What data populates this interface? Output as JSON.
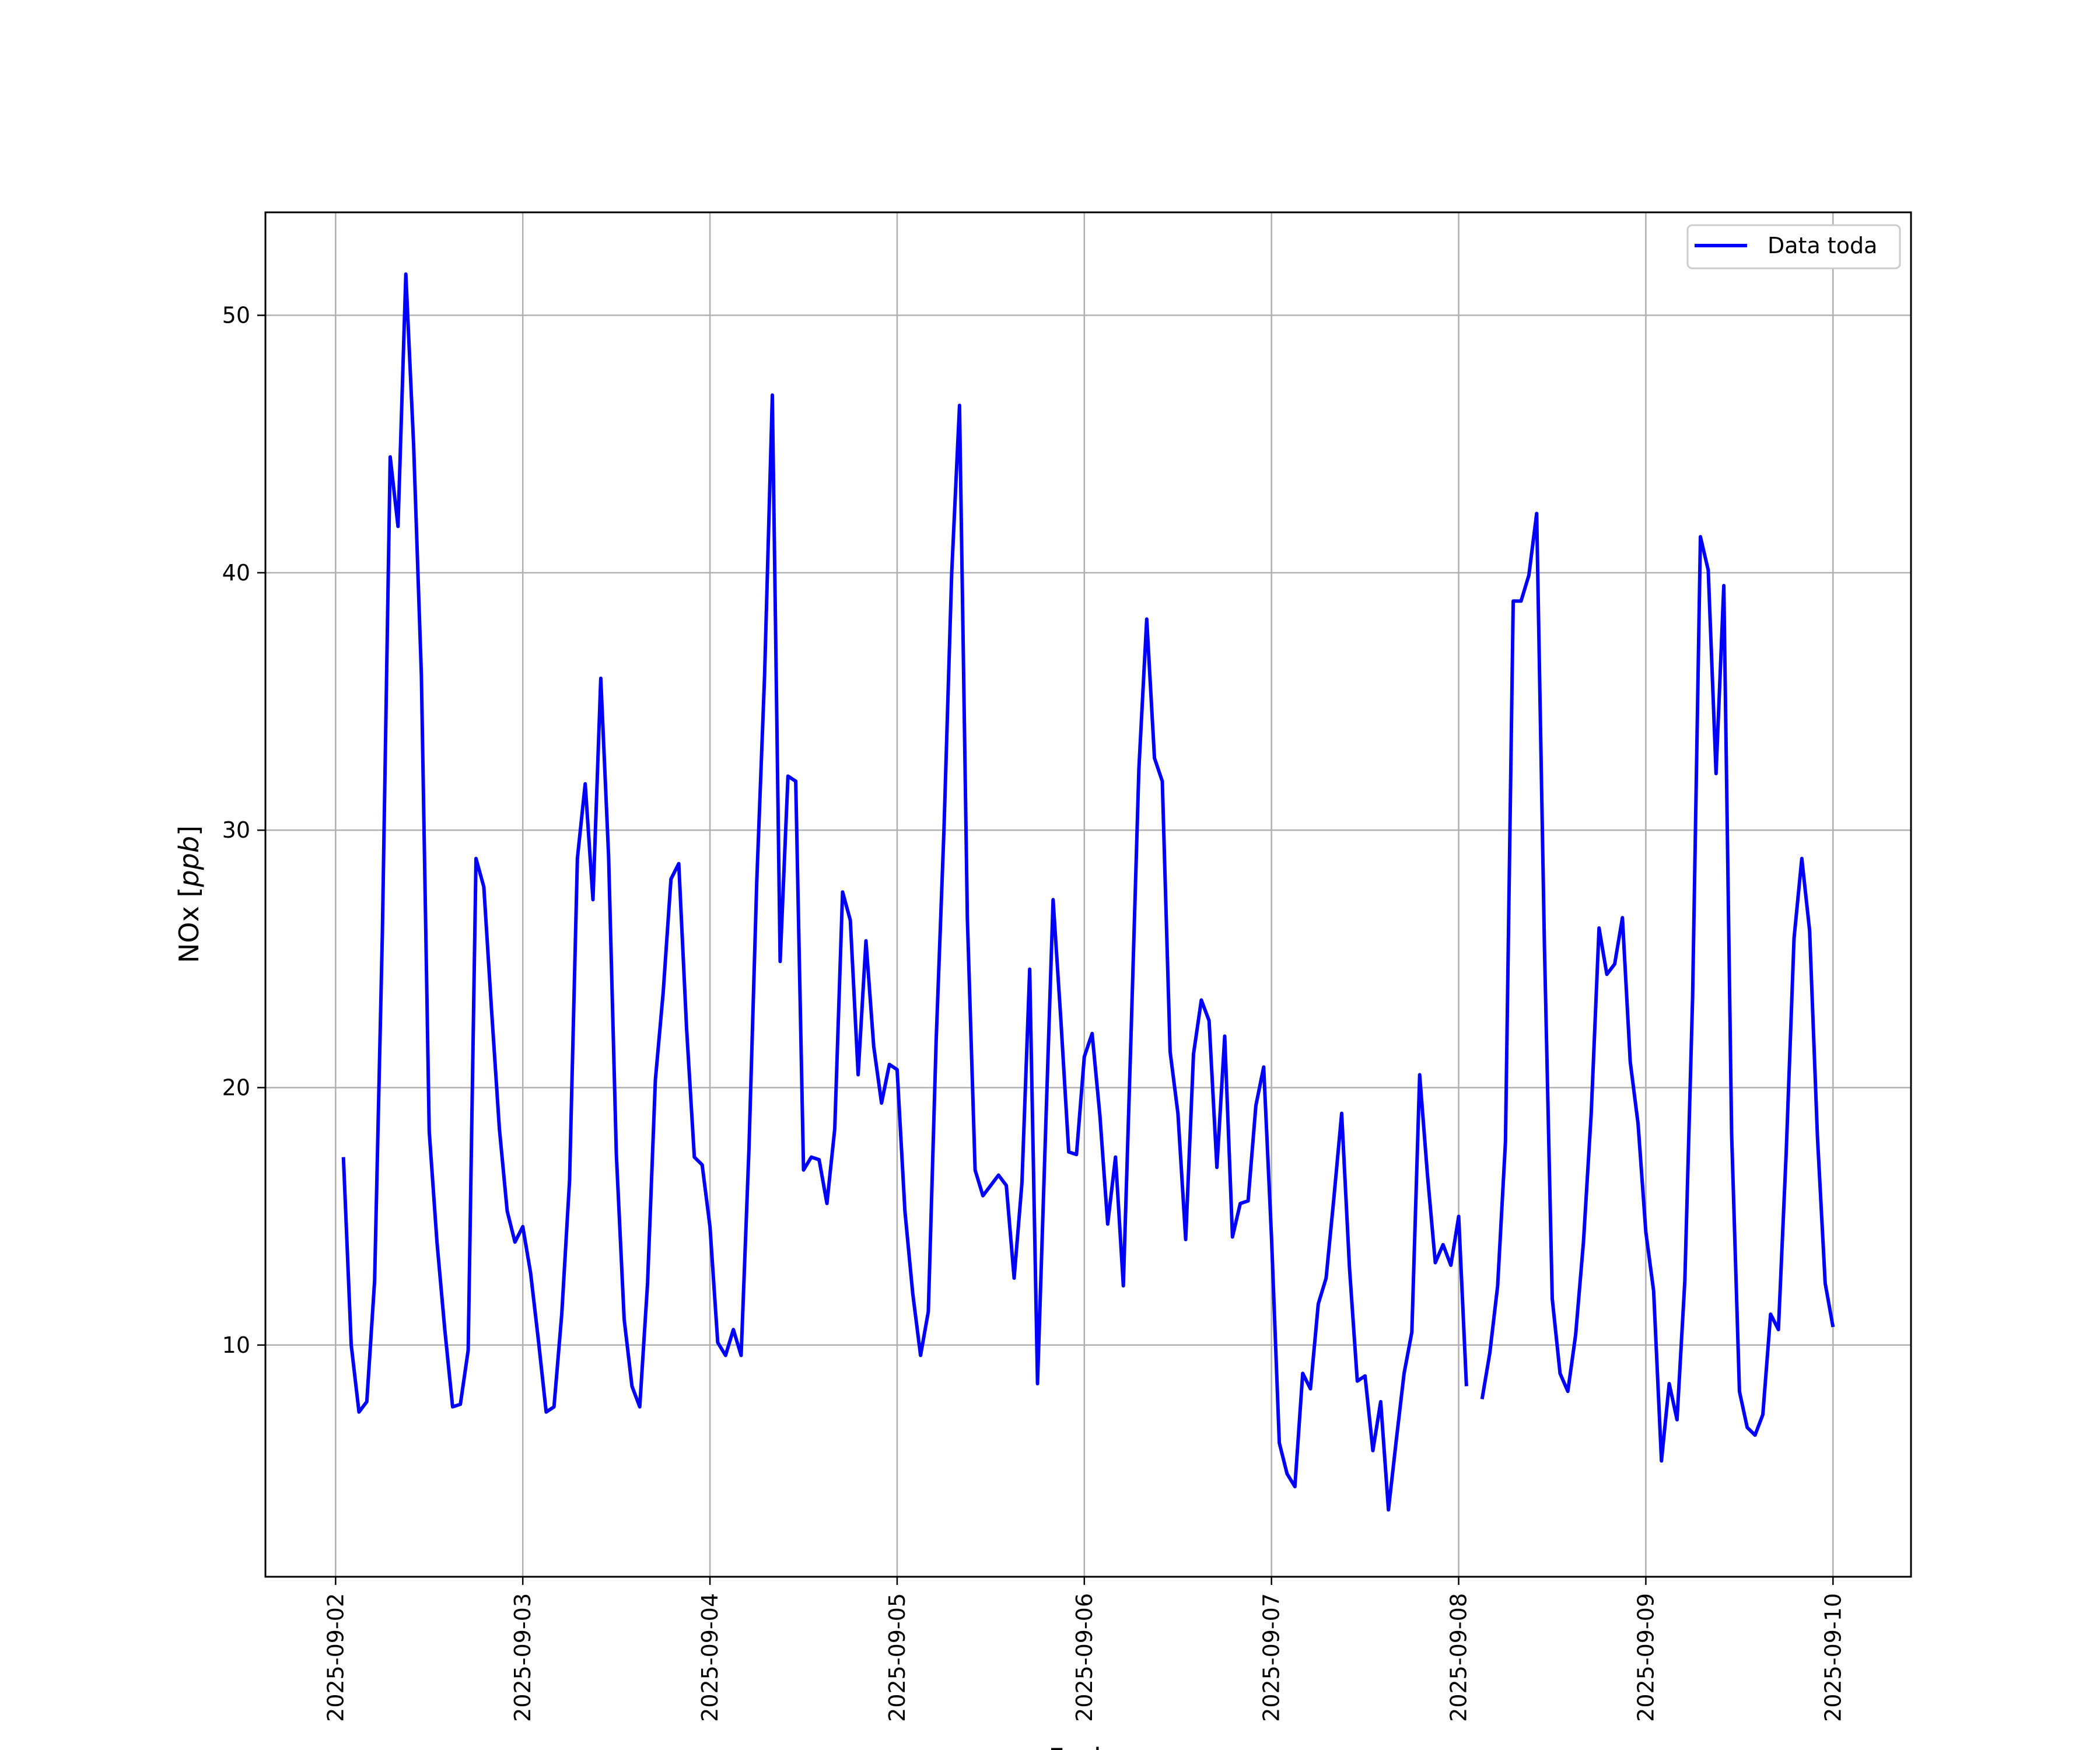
{
  "chart_data": {
    "type": "line",
    "title": "",
    "xlabel": "Fecha",
    "ylabel": "NOx",
    "ylabel_unit": "ppb",
    "x_tick_labels": [
      "2025-09-02",
      "2025-09-03",
      "2025-09-04",
      "2025-09-05",
      "2025-09-06",
      "2025-09-07",
      "2025-09-08",
      "2025-09-09",
      "2025-09-10"
    ],
    "y_ticks": [
      10,
      20,
      30,
      40,
      50
    ],
    "xlim": [
      "2025-09-01T15:00",
      "2025-09-10T10:00"
    ],
    "ylim": [
      1.0,
      54.0
    ],
    "grid": true,
    "legend": {
      "position": "top-right"
    },
    "line_color": "#0000ff",
    "series": [
      {
        "name": "Data toda",
        "points": [
          [
            "2025-09-02T01:00",
            17.3
          ],
          [
            "2025-09-02T02:00",
            10.0
          ],
          [
            "2025-09-02T03:00",
            7.4
          ],
          [
            "2025-09-02T04:00",
            7.8
          ],
          [
            "2025-09-02T05:00",
            12.5
          ],
          [
            "2025-09-02T06:00",
            26.0
          ],
          [
            "2025-09-02T07:00",
            44.5
          ],
          [
            "2025-09-02T08:00",
            41.8
          ],
          [
            "2025-09-02T09:00",
            51.6
          ],
          [
            "2025-09-02T10:00",
            45.0
          ],
          [
            "2025-09-02T11:00",
            36.0
          ],
          [
            "2025-09-02T12:00",
            18.3
          ],
          [
            "2025-09-02T13:00",
            14.0
          ],
          [
            "2025-09-02T14:00",
            10.6
          ],
          [
            "2025-09-02T15:00",
            7.6
          ],
          [
            "2025-09-02T16:00",
            7.7
          ],
          [
            "2025-09-02T17:00",
            9.8
          ],
          [
            "2025-09-02T18:00",
            28.9
          ],
          [
            "2025-09-02T19:00",
            27.8
          ],
          [
            "2025-09-02T20:00",
            23.0
          ],
          [
            "2025-09-02T21:00",
            18.4
          ],
          [
            "2025-09-02T22:00",
            15.2
          ],
          [
            "2025-09-02T23:00",
            14.0
          ],
          [
            "2025-09-03T00:00",
            14.6
          ],
          [
            "2025-09-03T01:00",
            12.8
          ],
          [
            "2025-09-03T02:00",
            10.2
          ],
          [
            "2025-09-03T03:00",
            7.4
          ],
          [
            "2025-09-03T04:00",
            7.6
          ],
          [
            "2025-09-03T05:00",
            11.2
          ],
          [
            "2025-09-03T06:00",
            16.4
          ],
          [
            "2025-09-03T07:00",
            28.9
          ],
          [
            "2025-09-03T08:00",
            31.8
          ],
          [
            "2025-09-03T09:00",
            27.3
          ],
          [
            "2025-09-03T10:00",
            35.9
          ],
          [
            "2025-09-03T11:00",
            29.0
          ],
          [
            "2025-09-03T12:00",
            17.4
          ],
          [
            "2025-09-03T13:00",
            11.0
          ],
          [
            "2025-09-03T14:00",
            8.4
          ],
          [
            "2025-09-03T15:00",
            7.6
          ],
          [
            "2025-09-03T16:00",
            12.4
          ],
          [
            "2025-09-03T17:00",
            20.3
          ],
          [
            "2025-09-03T18:00",
            23.7
          ],
          [
            "2025-09-03T19:00",
            28.1
          ],
          [
            "2025-09-03T20:00",
            28.7
          ],
          [
            "2025-09-03T21:00",
            22.3
          ],
          [
            "2025-09-03T22:00",
            17.3
          ],
          [
            "2025-09-03T23:00",
            17.0
          ],
          [
            "2025-09-04T00:00",
            14.6
          ],
          [
            "2025-09-04T01:00",
            10.1
          ],
          [
            "2025-09-04T02:00",
            9.6
          ],
          [
            "2025-09-04T03:00",
            10.6
          ],
          [
            "2025-09-04T04:00",
            9.6
          ],
          [
            "2025-09-04T05:00",
            17.6
          ],
          [
            "2025-09-04T06:00",
            28.0
          ],
          [
            "2025-09-04T07:00",
            36.0
          ],
          [
            "2025-09-04T08:00",
            46.9
          ],
          [
            "2025-09-04T09:00",
            24.9
          ],
          [
            "2025-09-04T10:00",
            32.1
          ],
          [
            "2025-09-04T11:00",
            31.9
          ],
          [
            "2025-09-04T12:00",
            16.8
          ],
          [
            "2025-09-04T13:00",
            17.3
          ],
          [
            "2025-09-04T14:00",
            17.2
          ],
          [
            "2025-09-04T15:00",
            15.5
          ],
          [
            "2025-09-04T16:00",
            18.4
          ],
          [
            "2025-09-04T17:00",
            27.6
          ],
          [
            "2025-09-04T18:00",
            26.5
          ],
          [
            "2025-09-04T19:00",
            20.5
          ],
          [
            "2025-09-04T20:00",
            25.7
          ],
          [
            "2025-09-04T21:00",
            21.6
          ],
          [
            "2025-09-04T22:00",
            19.4
          ],
          [
            "2025-09-04T23:00",
            20.9
          ],
          [
            "2025-09-05T00:00",
            20.7
          ],
          [
            "2025-09-05T01:00",
            15.2
          ],
          [
            "2025-09-05T02:00",
            12.0
          ],
          [
            "2025-09-05T03:00",
            9.6
          ],
          [
            "2025-09-05T04:00",
            11.3
          ],
          [
            "2025-09-05T05:00",
            21.8
          ],
          [
            "2025-09-05T06:00",
            30.0
          ],
          [
            "2025-09-05T07:00",
            40.0
          ],
          [
            "2025-09-05T08:00",
            46.5
          ],
          [
            "2025-09-05T09:00",
            26.6
          ],
          [
            "2025-09-05T10:00",
            16.8
          ],
          [
            "2025-09-05T11:00",
            15.8
          ],
          [
            "2025-09-05T12:00",
            16.2
          ],
          [
            "2025-09-05T13:00",
            16.6
          ],
          [
            "2025-09-05T14:00",
            16.2
          ],
          [
            "2025-09-05T15:00",
            12.6
          ],
          [
            "2025-09-05T16:00",
            16.3
          ],
          [
            "2025-09-05T17:00",
            24.6
          ],
          [
            "2025-09-05T18:00",
            8.5
          ],
          [
            "2025-09-05T19:00",
            18.0
          ],
          [
            "2025-09-05T20:00",
            27.3
          ],
          [
            "2025-09-05T21:00",
            22.6
          ],
          [
            "2025-09-05T22:00",
            17.5
          ],
          [
            "2025-09-05T23:00",
            17.4
          ],
          [
            "2025-09-06T00:00",
            21.2
          ],
          [
            "2025-09-06T01:00",
            22.1
          ],
          [
            "2025-09-06T02:00",
            18.9
          ],
          [
            "2025-09-06T03:00",
            14.7
          ],
          [
            "2025-09-06T04:00",
            17.3
          ],
          [
            "2025-09-06T05:00",
            12.3
          ],
          [
            "2025-09-06T06:00",
            22.1
          ],
          [
            "2025-09-06T07:00",
            32.4
          ],
          [
            "2025-09-06T08:00",
            38.2
          ],
          [
            "2025-09-06T09:00",
            32.8
          ],
          [
            "2025-09-06T10:00",
            31.9
          ],
          [
            "2025-09-06T11:00",
            21.4
          ],
          [
            "2025-09-06T12:00",
            19.0
          ],
          [
            "2025-09-06T13:00",
            14.1
          ],
          [
            "2025-09-06T14:00",
            21.3
          ],
          [
            "2025-09-06T15:00",
            23.4
          ],
          [
            "2025-09-06T16:00",
            22.6
          ],
          [
            "2025-09-06T17:00",
            16.9
          ],
          [
            "2025-09-06T18:00",
            22.0
          ],
          [
            "2025-09-06T19:00",
            14.2
          ],
          [
            "2025-09-06T20:00",
            15.5
          ],
          [
            "2025-09-06T21:00",
            15.6
          ],
          [
            "2025-09-06T22:00",
            19.3
          ],
          [
            "2025-09-06T23:00",
            20.8
          ],
          [
            "2025-09-07T00:00",
            14.2
          ],
          [
            "2025-09-07T01:00",
            6.2
          ],
          [
            "2025-09-07T02:00",
            5.0
          ],
          [
            "2025-09-07T03:00",
            4.5
          ],
          [
            "2025-09-07T04:00",
            8.9
          ],
          [
            "2025-09-07T05:00",
            8.3
          ],
          [
            "2025-09-07T06:00",
            11.6
          ],
          [
            "2025-09-07T07:00",
            12.6
          ],
          [
            "2025-09-07T08:00",
            15.7
          ],
          [
            "2025-09-07T09:00",
            19.0
          ],
          [
            "2025-09-07T10:00",
            13.0
          ],
          [
            "2025-09-07T11:00",
            8.6
          ],
          [
            "2025-09-07T12:00",
            8.8
          ],
          [
            "2025-09-07T13:00",
            5.9
          ],
          [
            "2025-09-07T14:00",
            7.8
          ],
          [
            "2025-09-07T15:00",
            3.6
          ],
          [
            "2025-09-07T16:00",
            6.3
          ],
          [
            "2025-09-07T17:00",
            8.9
          ],
          [
            "2025-09-07T18:00",
            10.5
          ],
          [
            "2025-09-07T19:00",
            20.5
          ],
          [
            "2025-09-07T20:00",
            16.6
          ],
          [
            "2025-09-07T21:00",
            13.2
          ],
          [
            "2025-09-07T22:00",
            13.9
          ],
          [
            "2025-09-07T23:00",
            13.1
          ],
          [
            "2025-09-08T00:00",
            15.0
          ],
          [
            "2025-09-08T01:00",
            8.4
          ],
          [
            "2025-09-08T02:00",
            null
          ],
          [
            "2025-09-08T03:00",
            7.9
          ],
          [
            "2025-09-08T04:00",
            9.7
          ],
          [
            "2025-09-08T05:00",
            12.3
          ],
          [
            "2025-09-08T06:00",
            17.9
          ],
          [
            "2025-09-08T07:00",
            38.9
          ],
          [
            "2025-09-08T08:00",
            38.9
          ],
          [
            "2025-09-08T09:00",
            39.9
          ],
          [
            "2025-09-08T10:00",
            42.3
          ],
          [
            "2025-09-08T11:00",
            25.5
          ],
          [
            "2025-09-08T12:00",
            11.8
          ],
          [
            "2025-09-08T13:00",
            8.9
          ],
          [
            "2025-09-08T14:00",
            8.2
          ],
          [
            "2025-09-08T15:00",
            10.4
          ],
          [
            "2025-09-08T16:00",
            14.0
          ],
          [
            "2025-09-08T17:00",
            19.0
          ],
          [
            "2025-09-08T18:00",
            26.2
          ],
          [
            "2025-09-08T19:00",
            24.4
          ],
          [
            "2025-09-08T20:00",
            24.8
          ],
          [
            "2025-09-08T21:00",
            26.6
          ],
          [
            "2025-09-08T22:00",
            21.0
          ],
          [
            "2025-09-08T23:00",
            18.6
          ],
          [
            "2025-09-09T00:00",
            14.4
          ],
          [
            "2025-09-09T01:00",
            12.1
          ],
          [
            "2025-09-09T02:00",
            5.5
          ],
          [
            "2025-09-09T03:00",
            8.5
          ],
          [
            "2025-09-09T04:00",
            7.1
          ],
          [
            "2025-09-09T05:00",
            12.5
          ],
          [
            "2025-09-09T06:00",
            23.5
          ],
          [
            "2025-09-09T07:00",
            41.4
          ],
          [
            "2025-09-09T08:00",
            40.1
          ],
          [
            "2025-09-09T09:00",
            32.2
          ],
          [
            "2025-09-09T10:00",
            39.5
          ],
          [
            "2025-09-09T11:00",
            18.2
          ],
          [
            "2025-09-09T12:00",
            8.2
          ],
          [
            "2025-09-09T13:00",
            6.8
          ],
          [
            "2025-09-09T14:00",
            6.5
          ],
          [
            "2025-09-09T15:00",
            7.3
          ],
          [
            "2025-09-09T16:00",
            11.2
          ],
          [
            "2025-09-09T17:00",
            10.6
          ],
          [
            "2025-09-09T18:00",
            17.5
          ],
          [
            "2025-09-09T19:00",
            25.8
          ],
          [
            "2025-09-09T20:00",
            28.9
          ],
          [
            "2025-09-09T21:00",
            26.1
          ],
          [
            "2025-09-09T22:00",
            18.1
          ],
          [
            "2025-09-09T23:00",
            12.4
          ],
          [
            "2025-09-10T00:00",
            10.7
          ]
        ]
      }
    ]
  }
}
